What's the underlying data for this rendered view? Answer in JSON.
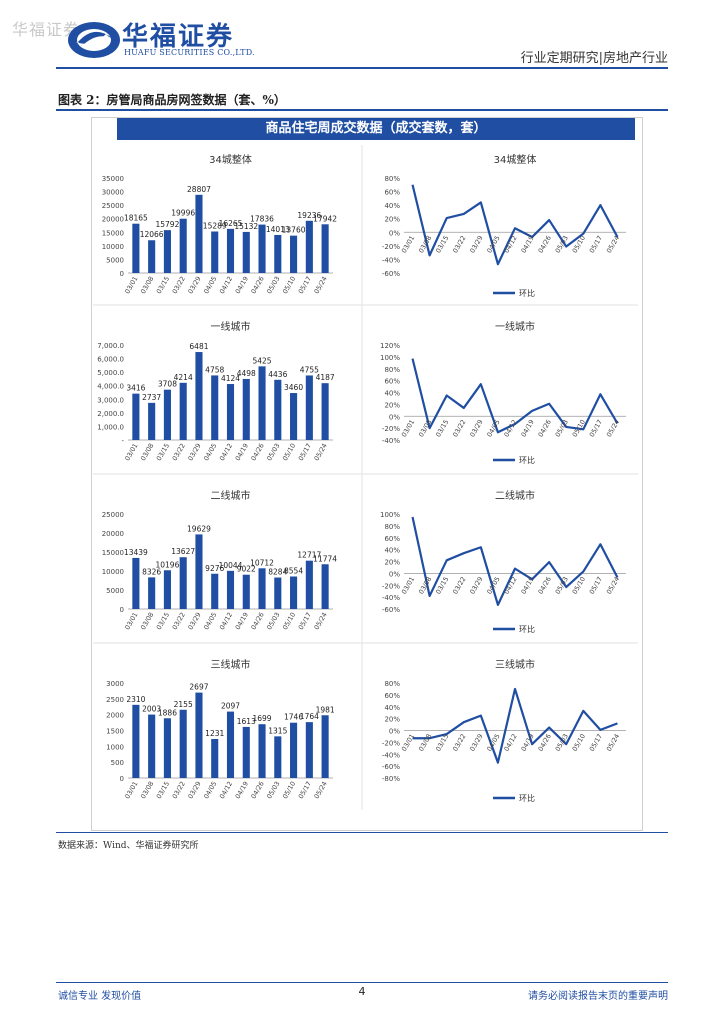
{
  "watermark": "华福证券",
  "header": {
    "logo_cn": "华福证券",
    "logo_en": "HUAFU SECURITIES CO.,LTD.",
    "category": "行业定期研究|房地产行业"
  },
  "figure": {
    "title": "图表 2：房管局商品房网签数据（套、%）",
    "banner": "商品住宅周成交数据（成交套数，套）"
  },
  "source": "数据来源：Wind、华福证券研究所",
  "footer": {
    "left": "诚信专业  发现价值",
    "page": "4",
    "right": "请务必阅读报告末页的重要声明"
  },
  "colors": {
    "primary": "#1f4ea3",
    "bar": "#1f4ea3",
    "line": "#1f4ea3"
  },
  "chart_data": [
    {
      "type": "bar",
      "title": "34城整体",
      "categories": [
        "03/01",
        "03/08",
        "03/15",
        "03/22",
        "03/29",
        "04/05",
        "04/12",
        "04/19",
        "04/26",
        "05/03",
        "05/10",
        "05/17",
        "05/24"
      ],
      "values": [
        18165,
        12066,
        15792,
        19996,
        28807,
        15289,
        16265,
        15132,
        17836,
        14013,
        13760,
        19236,
        17942
      ],
      "labels": [
        "18165",
        "12066",
        "15792",
        "19996",
        "28807",
        "15289",
        "16265",
        "15132",
        "17836",
        "14013",
        "13760",
        "19236",
        "17942"
      ],
      "yticks": [
        "0",
        "5000",
        "10000",
        "15000",
        "20000",
        "25000",
        "30000",
        "35000"
      ],
      "ylim": [
        0,
        35000
      ]
    },
    {
      "type": "line",
      "title": "34城整体",
      "legend": "环比",
      "categories": [
        "03/01",
        "03/08",
        "03/15",
        "03/22",
        "03/29",
        "04/05",
        "04/12",
        "04/19",
        "04/26",
        "05/03",
        "05/10",
        "05/17",
        "05/24"
      ],
      "values": [
        70,
        -34,
        21,
        27,
        44,
        -47,
        6,
        -7,
        18,
        -21,
        -2,
        40,
        -7
      ],
      "yticks": [
        "-60%",
        "-40%",
        "-20%",
        "0%",
        "20%",
        "40%",
        "60%",
        "80%"
      ],
      "ylim": [
        -60,
        80
      ]
    },
    {
      "type": "bar",
      "title": "一线城市",
      "categories": [
        "03/01",
        "03/08",
        "03/15",
        "03/22",
        "03/29",
        "04/05",
        "04/12",
        "04/19",
        "04/26",
        "05/03",
        "05/10",
        "05/17",
        "05/24"
      ],
      "values": [
        3416,
        2737,
        3708,
        4214,
        6481,
        4758,
        4124,
        4498,
        5425,
        4436,
        3460,
        4755,
        4187
      ],
      "labels": [
        "3416",
        "2737",
        "3708",
        "4214",
        "6481",
        "4758",
        "4124",
        "4498",
        "5425",
        "4436",
        "3460",
        "4755",
        "4187"
      ],
      "yticks": [
        "-",
        "1,000.0",
        "2,000.0",
        "3,000.0",
        "4,000.0",
        "5,000.0",
        "6,000.0",
        "7,000.0"
      ],
      "ylim": [
        0,
        7000
      ]
    },
    {
      "type": "line",
      "title": "一线城市",
      "legend": "环比",
      "categories": [
        "03/01",
        "03/08",
        "03/15",
        "03/22",
        "03/29",
        "04/05",
        "04/12",
        "04/19",
        "04/26",
        "05/03",
        "05/10",
        "05/17",
        "05/24"
      ],
      "values": [
        97,
        -20,
        35,
        14,
        54,
        -27,
        -13,
        9,
        21,
        -18,
        -22,
        37,
        -12
      ],
      "yticks": [
        "-40%",
        "-20%",
        "0%",
        "20%",
        "40%",
        "60%",
        "80%",
        "100%",
        "120%"
      ],
      "ylim": [
        -40,
        120
      ]
    },
    {
      "type": "bar",
      "title": "二线城市",
      "categories": [
        "03/01",
        "03/08",
        "03/15",
        "03/22",
        "03/29",
        "04/05",
        "04/12",
        "04/19",
        "04/26",
        "05/03",
        "05/10",
        "05/17",
        "05/24"
      ],
      "values": [
        13439,
        8326,
        10196,
        13627,
        19629,
        9276,
        10044,
        9022,
        10712,
        8284,
        8554,
        12717,
        11774
      ],
      "labels": [
        "13439",
        "8326",
        "10196",
        "13627",
        "19629",
        "9276",
        "10044",
        "9022",
        "10712",
        "8284",
        "8554",
        "12717",
        "11774"
      ],
      "yticks": [
        "0",
        "5000",
        "10000",
        "15000",
        "20000",
        "25000"
      ],
      "ylim": [
        0,
        25000
      ]
    },
    {
      "type": "line",
      "title": "二线城市",
      "legend": "环比",
      "categories": [
        "03/01",
        "03/08",
        "03/15",
        "03/22",
        "03/29",
        "04/05",
        "04/12",
        "04/19",
        "04/26",
        "05/03",
        "05/10",
        "05/17",
        "05/24"
      ],
      "values": [
        95,
        -38,
        22,
        34,
        44,
        -53,
        8,
        -10,
        19,
        -23,
        3,
        49,
        -7
      ],
      "yticks": [
        "-60%",
        "-40%",
        "-20%",
        "0%",
        "20%",
        "40%",
        "60%",
        "80%",
        "100%"
      ],
      "ylim": [
        -60,
        100
      ]
    },
    {
      "type": "bar",
      "title": "三线城市",
      "categories": [
        "03/01",
        "03/08",
        "03/15",
        "03/22",
        "03/29",
        "04/05",
        "04/12",
        "04/19",
        "04/26",
        "05/03",
        "05/10",
        "05/17",
        "05/24"
      ],
      "values": [
        2310,
        2003,
        1886,
        2155,
        2697,
        1231,
        2097,
        1613,
        1699,
        1315,
        1746,
        1764,
        1981
      ],
      "labels": [
        "2310",
        "2003",
        "1886",
        "2155",
        "2697",
        "1231",
        "2097",
        "1613",
        "1699",
        "1315",
        "1746",
        "1764",
        "1981"
      ],
      "yticks": [
        "0",
        "500",
        "1000",
        "1500",
        "2000",
        "2500",
        "3000"
      ],
      "ylim": [
        0,
        3000
      ]
    },
    {
      "type": "line",
      "title": "三线城市",
      "legend": "环比",
      "categories": [
        "03/01",
        "03/08",
        "03/15",
        "03/22",
        "03/29",
        "04/05",
        "04/12",
        "04/19",
        "04/26",
        "05/03",
        "05/10",
        "05/17",
        "05/24"
      ],
      "values": [
        -13,
        -13,
        -6,
        14,
        25,
        -54,
        70,
        -23,
        5,
        -23,
        33,
        1,
        12
      ],
      "yticks": [
        "-80%",
        "-60%",
        "-40%",
        "-20%",
        "0%",
        "20%",
        "40%",
        "60%",
        "80%"
      ],
      "ylim": [
        -80,
        80
      ]
    }
  ]
}
